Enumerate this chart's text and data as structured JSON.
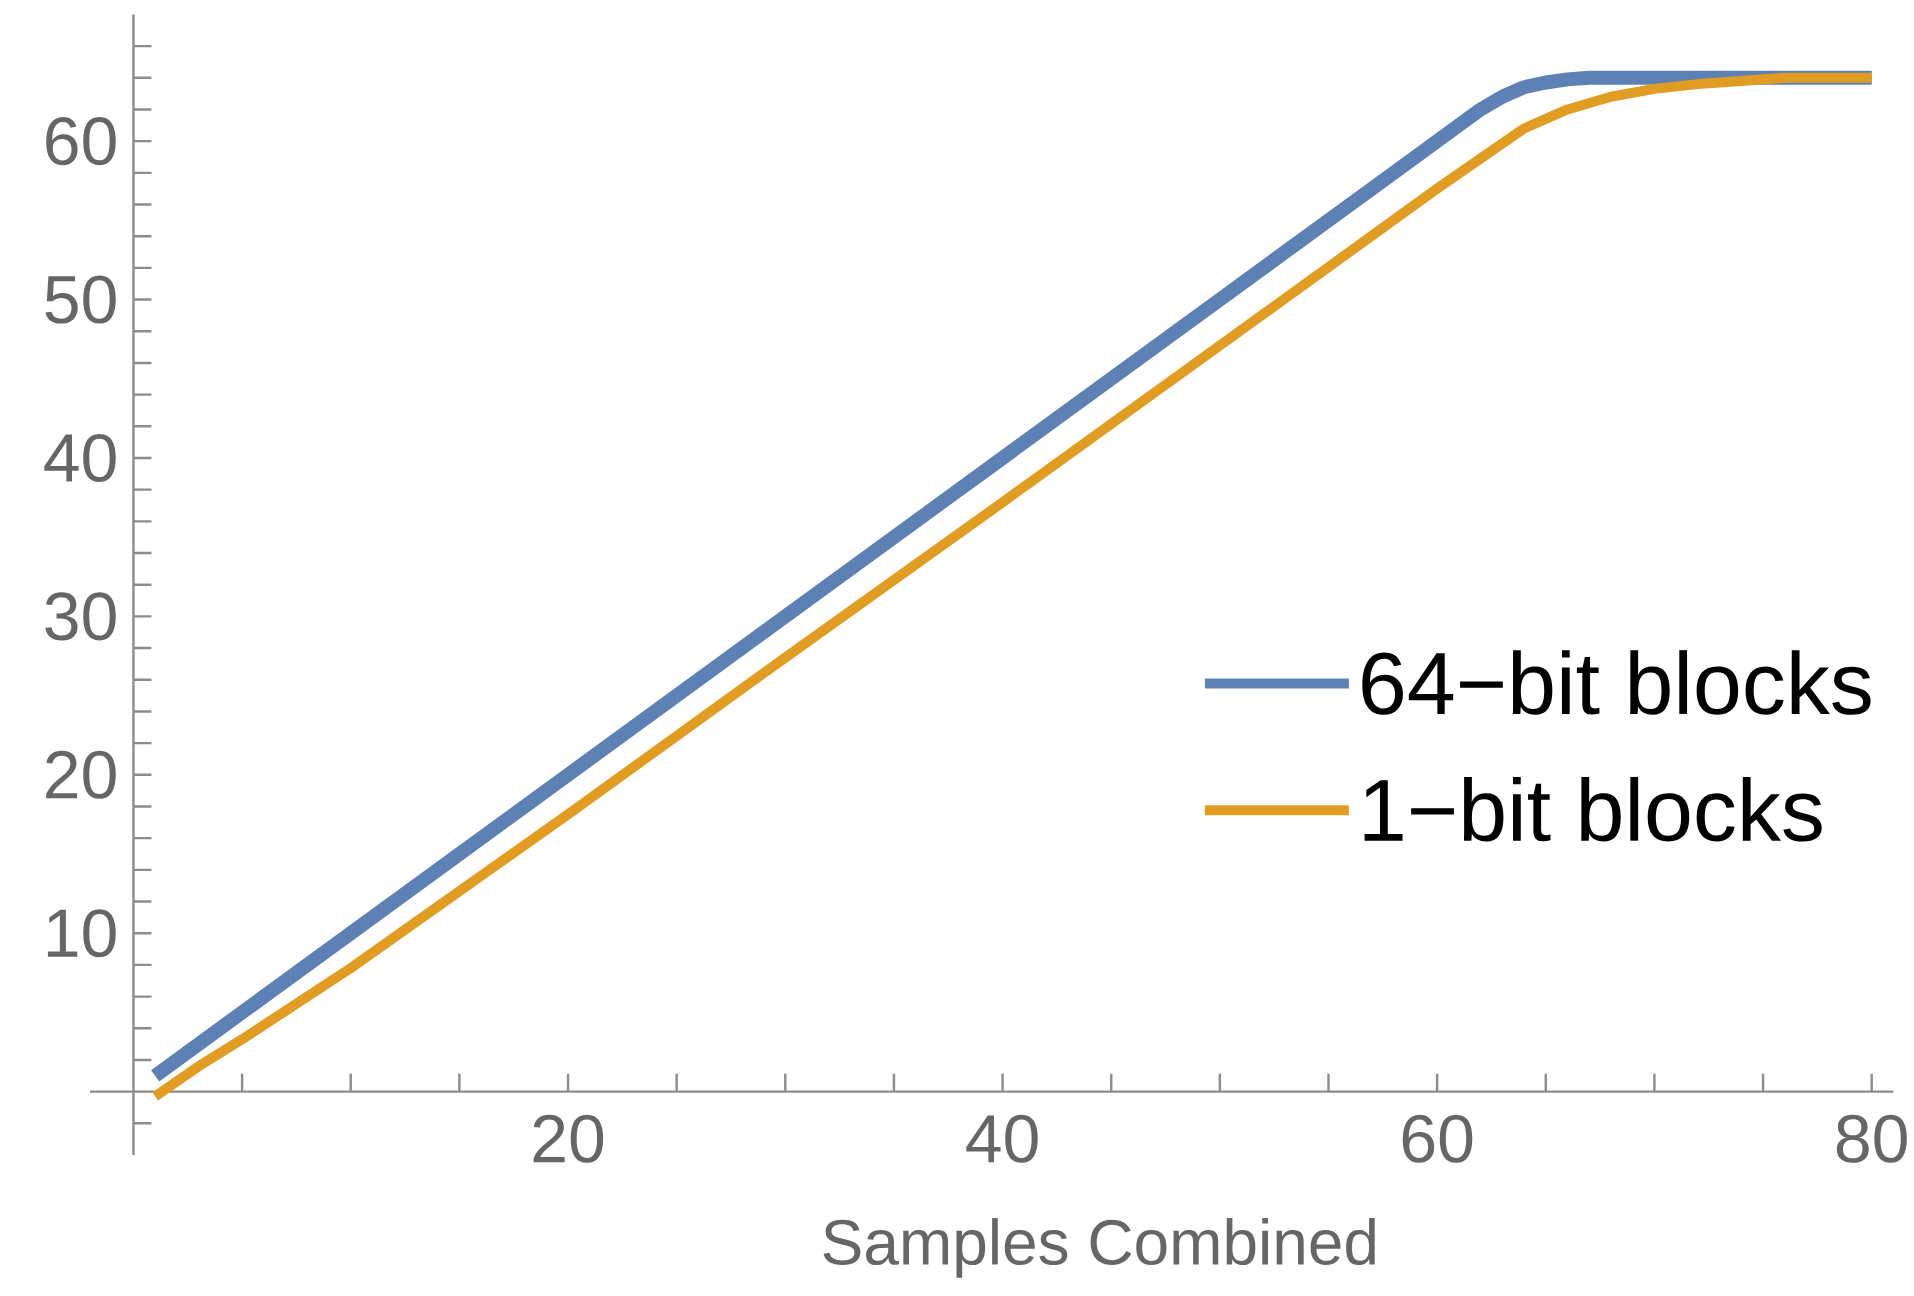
{
  "chart_data": {
    "type": "line",
    "xlabel": "Samples Combined",
    "xlim": [
      -2,
      81
    ],
    "ylim": [
      -4,
      68
    ],
    "xticks": [
      {
        "value": 5,
        "label": null
      },
      {
        "value": 10,
        "label": null
      },
      {
        "value": 15,
        "label": null
      },
      20,
      {
        "value": 25,
        "label": null
      },
      {
        "value": 30,
        "label": null
      },
      {
        "value": 35,
        "label": null
      },
      40,
      {
        "value": 45,
        "label": null
      },
      {
        "value": 50,
        "label": null
      },
      {
        "value": 55,
        "label": null
      },
      60,
      {
        "value": 65,
        "label": null
      },
      {
        "value": 70,
        "label": null
      },
      {
        "value": 75,
        "label": null
      },
      80
    ],
    "yticks": [
      {
        "value": -2,
        "label": null
      },
      {
        "value": 2,
        "label": null
      },
      {
        "value": 4,
        "label": null
      },
      {
        "value": 6,
        "label": null
      },
      {
        "value": 8,
        "label": null
      },
      10,
      {
        "value": 12,
        "label": null
      },
      {
        "value": 14,
        "label": null
      },
      {
        "value": 16,
        "label": null
      },
      {
        "value": 18,
        "label": null
      },
      20,
      {
        "value": 22,
        "label": null
      },
      {
        "value": 24,
        "label": null
      },
      {
        "value": 26,
        "label": null
      },
      {
        "value": 28,
        "label": null
      },
      30,
      {
        "value": 32,
        "label": null
      },
      {
        "value": 34,
        "label": null
      },
      {
        "value": 36,
        "label": null
      },
      {
        "value": 38,
        "label": null
      },
      40,
      {
        "value": 42,
        "label": null
      },
      {
        "value": 44,
        "label": null
      },
      {
        "value": 46,
        "label": null
      },
      {
        "value": 48,
        "label": null
      },
      50,
      {
        "value": 52,
        "label": null
      },
      {
        "value": 54,
        "label": null
      },
      {
        "value": 56,
        "label": null
      },
      {
        "value": 58,
        "label": null
      },
      60,
      {
        "value": 62,
        "label": null
      },
      {
        "value": 64,
        "label": null
      },
      {
        "value": 66,
        "label": null
      }
    ],
    "legend": "right",
    "marker": "none",
    "line_style": "solid",
    "series": [
      {
        "name": "64−bit blocks",
        "color": "#5e81b5",
        "x": [
          1,
          10,
          20,
          30,
          40,
          50,
          58,
          60,
          62,
          63,
          64,
          65,
          66,
          67,
          68,
          70,
          80
        ],
        "values": [
          1,
          10,
          20,
          30,
          40,
          50,
          58,
          60,
          62,
          62.8,
          63.4,
          63.7,
          63.9,
          64,
          64,
          64,
          64
        ]
      },
      {
        "name": "1−bit blocks",
        "color": "#e19c24",
        "x": [
          1,
          3,
          5,
          10,
          20,
          30,
          40,
          50,
          60,
          64,
          66,
          68,
          70,
          72,
          74,
          76,
          78,
          80
        ],
        "values": [
          -0.3,
          1.6,
          3.3,
          7.8,
          17.5,
          27.4,
          37.2,
          47.1,
          57,
          60.8,
          62,
          62.8,
          63.3,
          63.6,
          63.8,
          64,
          64,
          64
        ]
      }
    ]
  }
}
